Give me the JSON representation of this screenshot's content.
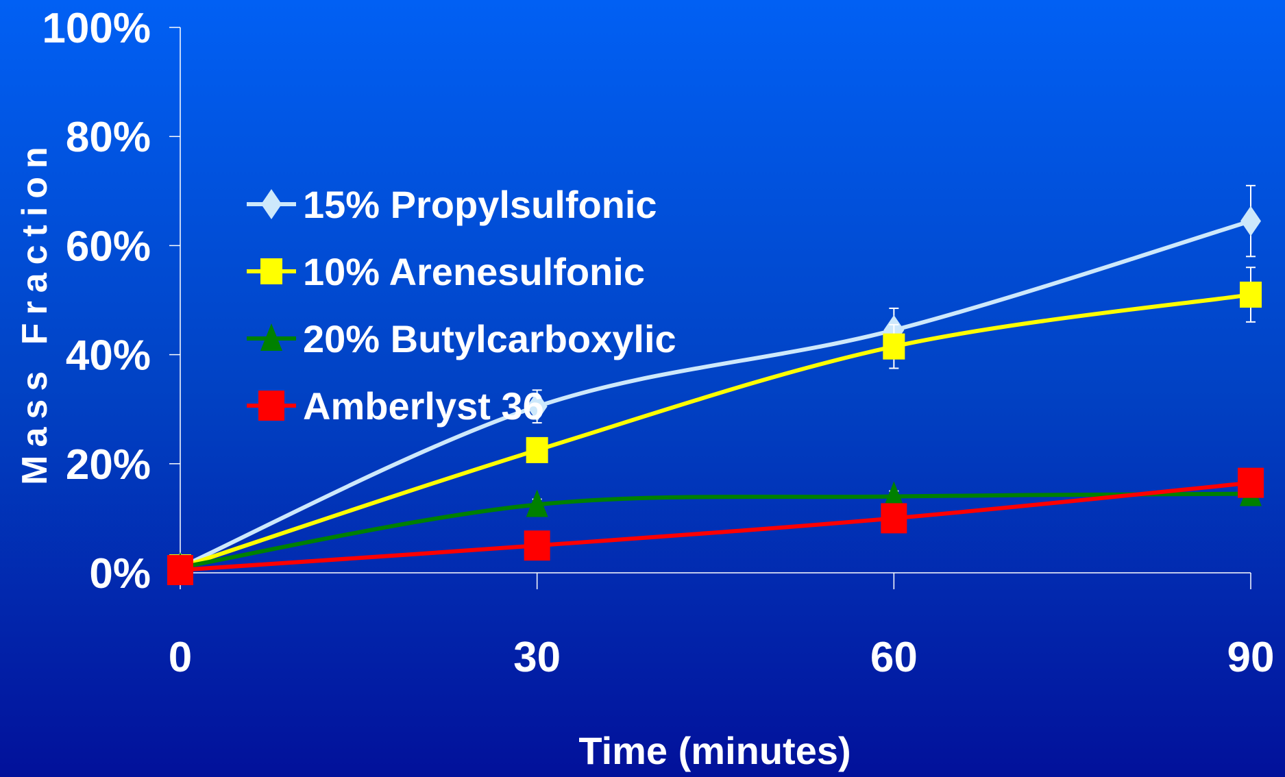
{
  "chart_data": {
    "type": "line",
    "title": "",
    "xlabel": "Time (minutes)",
    "ylabel": "Mass Fraction",
    "x": [
      0,
      30,
      60,
      90
    ],
    "x_ticks": [
      "0",
      "30",
      "60",
      "90"
    ],
    "y_ticks": [
      "0%",
      "20%",
      "40%",
      "60%",
      "80%",
      "100%"
    ],
    "xlim": [
      0,
      90
    ],
    "ylim": [
      0,
      100
    ],
    "grid": false,
    "legend_position": "upper-left",
    "series": [
      {
        "name": "15% Propylsulfonic",
        "values": [
          1,
          30.5,
          44.5,
          64.5
        ],
        "errors": [
          0,
          3,
          4,
          6.5
        ],
        "color": "#cde8fb",
        "marker": "diamond"
      },
      {
        "name": "10% Arenesulfonic",
        "values": [
          1,
          22.5,
          41.5,
          51
        ],
        "errors": [
          0,
          0,
          4,
          5
        ],
        "color": "#ffff00",
        "marker": "square"
      },
      {
        "name": "20% Butylcarboxylic",
        "values": [
          1,
          12.5,
          14,
          14.5
        ],
        "errors": [
          0,
          1,
          1,
          0
        ],
        "color": "#008000",
        "marker": "triangle"
      },
      {
        "name": "Amberlyst 36",
        "values": [
          0.5,
          5,
          10,
          16.5
        ],
        "errors": [
          0,
          0,
          0,
          0
        ],
        "color": "#ff0000",
        "marker": "square-large"
      }
    ]
  }
}
